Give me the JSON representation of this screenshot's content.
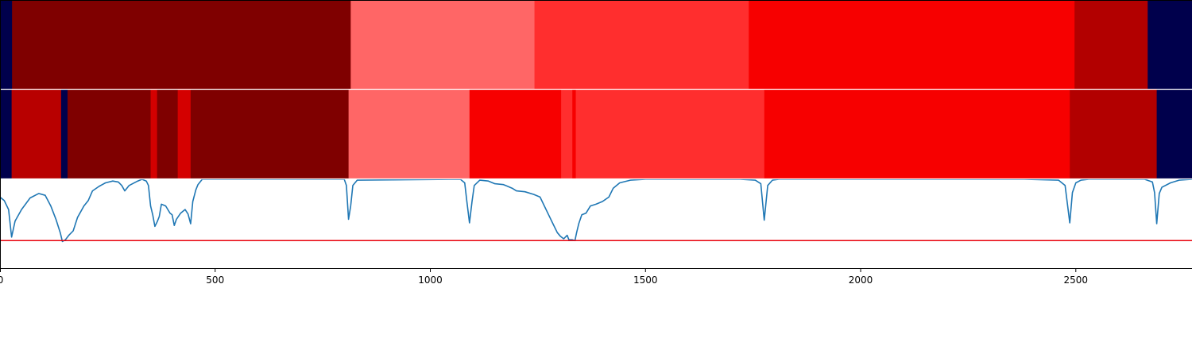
{
  "chart_data": {
    "type": "heatmap",
    "xlim": [
      0,
      2770
    ],
    "x_ticks": [
      "0",
      "500",
      "1000",
      "1500",
      "2000",
      "2500"
    ],
    "x_tick_values": [
      0,
      500,
      1000,
      1500,
      2000,
      2500
    ],
    "grid": false,
    "legend": "none",
    "rows": [
      {
        "name": "",
        "segments": [
          {
            "start": 0,
            "end": 28,
            "color": "#00004c"
          },
          {
            "start": 28,
            "end": 815,
            "color": "#7f0000"
          },
          {
            "start": 815,
            "end": 1242,
            "color": "#ff6666"
          },
          {
            "start": 1242,
            "end": 1740,
            "color": "#ff2e2e"
          },
          {
            "start": 1740,
            "end": 2497,
            "color": "#f70000"
          },
          {
            "start": 2497,
            "end": 2667,
            "color": "#b20000"
          },
          {
            "start": 2667,
            "end": 2770,
            "color": "#00004c"
          }
        ]
      },
      {
        "name": "",
        "segments": [
          {
            "start": 0,
            "end": 27,
            "color": "#00004c"
          },
          {
            "start": 27,
            "end": 142,
            "color": "#b80000"
          },
          {
            "start": 142,
            "end": 157,
            "color": "#00004c"
          },
          {
            "start": 157,
            "end": 350,
            "color": "#7f0000"
          },
          {
            "start": 350,
            "end": 365,
            "color": "#d40000"
          },
          {
            "start": 365,
            "end": 413,
            "color": "#7f0000"
          },
          {
            "start": 413,
            "end": 443,
            "color": "#d40000"
          },
          {
            "start": 443,
            "end": 810,
            "color": "#7f0000"
          },
          {
            "start": 810,
            "end": 1091,
            "color": "#ff6666"
          },
          {
            "start": 1091,
            "end": 1304,
            "color": "#f70000"
          },
          {
            "start": 1304,
            "end": 1330,
            "color": "#ff2e2e"
          },
          {
            "start": 1330,
            "end": 1338,
            "color": "#f70000"
          },
          {
            "start": 1338,
            "end": 1776,
            "color": "#ff2e2e"
          },
          {
            "start": 1776,
            "end": 2486,
            "color": "#f70000"
          },
          {
            "start": 2486,
            "end": 2688,
            "color": "#b20000"
          },
          {
            "start": 2688,
            "end": 2770,
            "color": "#00004c"
          }
        ]
      }
    ],
    "line_panel": {
      "ylim": [
        0,
        1
      ],
      "threshold": 0.31,
      "line_color": "#1f77b4",
      "threshold_color": "#e8000b",
      "points": [
        [
          0,
          0.8
        ],
        [
          10,
          0.76
        ],
        [
          20,
          0.66
        ],
        [
          27,
          0.35
        ],
        [
          35,
          0.53
        ],
        [
          50,
          0.66
        ],
        [
          70,
          0.79
        ],
        [
          90,
          0.84
        ],
        [
          105,
          0.82
        ],
        [
          118,
          0.7
        ],
        [
          130,
          0.55
        ],
        [
          140,
          0.4
        ],
        [
          145,
          0.3
        ],
        [
          152,
          0.32
        ],
        [
          160,
          0.37
        ],
        [
          170,
          0.42
        ],
        [
          180,
          0.57
        ],
        [
          195,
          0.7
        ],
        [
          205,
          0.76
        ],
        [
          215,
          0.87
        ],
        [
          230,
          0.92
        ],
        [
          245,
          0.96
        ],
        [
          262,
          0.98
        ],
        [
          275,
          0.97
        ],
        [
          283,
          0.93
        ],
        [
          290,
          0.87
        ],
        [
          300,
          0.93
        ],
        [
          320,
          0.98
        ],
        [
          330,
          1.0
        ],
        [
          340,
          0.98
        ],
        [
          345,
          0.93
        ],
        [
          350,
          0.7
        ],
        [
          355,
          0.6
        ],
        [
          360,
          0.47
        ],
        [
          365,
          0.52
        ],
        [
          370,
          0.58
        ],
        [
          375,
          0.72
        ],
        [
          385,
          0.7
        ],
        [
          395,
          0.62
        ],
        [
          400,
          0.6
        ],
        [
          405,
          0.48
        ],
        [
          410,
          0.55
        ],
        [
          420,
          0.62
        ],
        [
          430,
          0.66
        ],
        [
          437,
          0.61
        ],
        [
          443,
          0.5
        ],
        [
          448,
          0.75
        ],
        [
          455,
          0.88
        ],
        [
          460,
          0.94
        ],
        [
          470,
          1.0
        ],
        [
          800,
          1.0
        ],
        [
          805,
          0.93
        ],
        [
          810,
          0.55
        ],
        [
          815,
          0.7
        ],
        [
          820,
          0.93
        ],
        [
          830,
          0.99
        ],
        [
          1070,
          1.0
        ],
        [
          1080,
          0.96
        ],
        [
          1085,
          0.75
        ],
        [
          1091,
          0.51
        ],
        [
          1097,
          0.75
        ],
        [
          1102,
          0.93
        ],
        [
          1115,
          0.99
        ],
        [
          1135,
          0.98
        ],
        [
          1150,
          0.95
        ],
        [
          1170,
          0.94
        ],
        [
          1190,
          0.9
        ],
        [
          1200,
          0.87
        ],
        [
          1220,
          0.86
        ],
        [
          1240,
          0.83
        ],
        [
          1255,
          0.8
        ],
        [
          1265,
          0.7
        ],
        [
          1275,
          0.6
        ],
        [
          1285,
          0.5
        ],
        [
          1295,
          0.4
        ],
        [
          1302,
          0.36
        ],
        [
          1310,
          0.33
        ],
        [
          1318,
          0.37
        ],
        [
          1322,
          0.32
        ],
        [
          1330,
          0.32
        ],
        [
          1336,
          0.31
        ],
        [
          1340,
          0.4
        ],
        [
          1345,
          0.5
        ],
        [
          1352,
          0.6
        ],
        [
          1362,
          0.62
        ],
        [
          1372,
          0.7
        ],
        [
          1385,
          0.72
        ],
        [
          1400,
          0.75
        ],
        [
          1415,
          0.8
        ],
        [
          1425,
          0.9
        ],
        [
          1440,
          0.96
        ],
        [
          1465,
          0.99
        ],
        [
          1500,
          1.0
        ],
        [
          1720,
          1.0
        ],
        [
          1755,
          0.99
        ],
        [
          1768,
          0.95
        ],
        [
          1776,
          0.54
        ],
        [
          1784,
          0.93
        ],
        [
          1795,
          0.99
        ],
        [
          1810,
          1.0
        ],
        [
          2380,
          1.0
        ],
        [
          2460,
          0.99
        ],
        [
          2475,
          0.93
        ],
        [
          2486,
          0.51
        ],
        [
          2492,
          0.85
        ],
        [
          2500,
          0.96
        ],
        [
          2512,
          0.99
        ],
        [
          2530,
          1.0
        ],
        [
          2660,
          1.0
        ],
        [
          2678,
          0.97
        ],
        [
          2683,
          0.85
        ],
        [
          2688,
          0.5
        ],
        [
          2694,
          0.84
        ],
        [
          2700,
          0.91
        ],
        [
          2720,
          0.96
        ],
        [
          2740,
          0.99
        ],
        [
          2770,
          1.0
        ]
      ]
    }
  }
}
